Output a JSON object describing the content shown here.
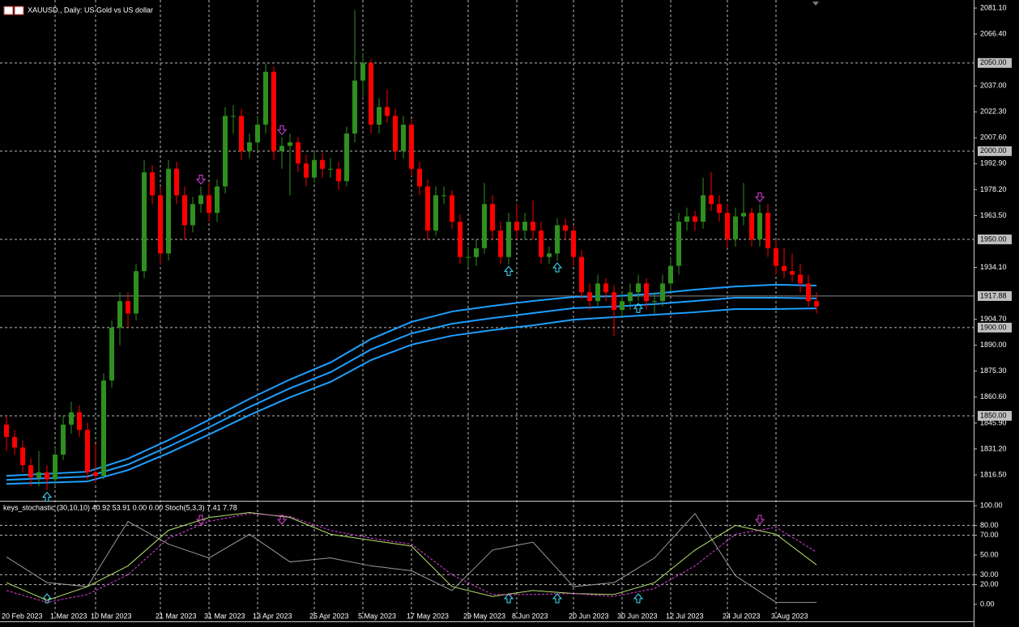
{
  "chart_data": [
    {
      "type": "candlestick",
      "title": "XAUUSD., Daily: US Gold vs US dollar",
      "categories": [
        "20 Feb 2023",
        null,
        null,
        null,
        null,
        null,
        "1 Mar 2023",
        null,
        null,
        null,
        null,
        "10 Mar 2023",
        null,
        null,
        null,
        null,
        null,
        null,
        null,
        "21 Mar 2023",
        null,
        null,
        null,
        null,
        null,
        "31 Mar 2023",
        null,
        null,
        null,
        null,
        null,
        "13 Apr 2023",
        null,
        null,
        null,
        null,
        null,
        null,
        "25 Apr 2023",
        null,
        null,
        null,
        null,
        null,
        "5 May 2023",
        null,
        null,
        null,
        null,
        null,
        "17 May 2023",
        null,
        null,
        null,
        null,
        null,
        null,
        "29 May 2023",
        null,
        null,
        null,
        null,
        null,
        "8 Jun 2023",
        null,
        null,
        null,
        null,
        null,
        null,
        "20 Jun 2023",
        null,
        null,
        null,
        null,
        null,
        "30 Jun 2023",
        null,
        null,
        null,
        null,
        null,
        "12 Jul 2023",
        null,
        null,
        null,
        null,
        null,
        null,
        "24 Jul 2023",
        null,
        null,
        null,
        null,
        null,
        "3 Aug 2023",
        null,
        null,
        null,
        null,
        null
      ],
      "open": [
        1845,
        1838,
        1832,
        1822,
        1815,
        1818,
        1814,
        1828,
        1845,
        1852,
        1842,
        1818,
        1816,
        1870,
        1900,
        1915,
        1908,
        1932,
        1988,
        1975,
        1942,
        1990,
        1975,
        1958,
        1970,
        1975,
        1965,
        1980,
        2020,
        2020,
        2000,
        2005,
        2015,
        2045,
        2000,
        2003,
        2005,
        1993,
        1985,
        1995,
        1990,
        1990,
        1983,
        2010,
        2040,
        2050,
        2015,
        2025,
        2020,
        2000,
        2015,
        1990,
        1980,
        1955,
        1975,
        1975,
        1960,
        1940,
        1940,
        1945,
        1970,
        1955,
        1940,
        1960,
        1955,
        1960,
        1955,
        1940,
        1942,
        1958,
        1955,
        1940,
        1920,
        1915,
        1925,
        1920,
        1910,
        1915,
        1920,
        1925,
        1915,
        1915,
        1925,
        1935,
        1960,
        1963,
        1960,
        1975,
        1970,
        1965,
        1950,
        1963,
        1965,
        1950,
        1965,
        1945,
        1935,
        1932,
        1930,
        1925,
        1915
      ],
      "high": [
        1850,
        1842,
        1836,
        1826,
        1830,
        1822,
        1832,
        1850,
        1858,
        1856,
        1846,
        1834,
        1874,
        1904,
        1920,
        1920,
        1936,
        1995,
        1992,
        1980,
        1995,
        1994,
        1980,
        1974,
        1980,
        1982,
        1984,
        2025,
        2026,
        2024,
        2010,
        2020,
        2050,
        2048,
        2008,
        2010,
        2008,
        1998,
        2000,
        1999,
        1996,
        1994,
        2014,
        2080,
        2055,
        2052,
        2030,
        2035,
        2024,
        2020,
        2018,
        1994,
        1984,
        1980,
        1980,
        1978,
        1964,
        1946,
        1950,
        1982,
        1975,
        1960,
        1965,
        1970,
        1965,
        1972,
        1960,
        1946,
        1962,
        1962,
        1958,
        1944,
        1925,
        1930,
        1928,
        1924,
        1920,
        1925,
        1930,
        1928,
        1920,
        1930,
        1940,
        1965,
        1968,
        1966,
        1985,
        1988,
        1975,
        1970,
        1968,
        1982,
        1968,
        1970,
        1970,
        1950,
        1945,
        1942,
        1936,
        1930,
        1920
      ],
      "low": [
        1830,
        1828,
        1818,
        1810,
        1810,
        1808,
        1810,
        1825,
        1840,
        1838,
        1814,
        1812,
        1814,
        1866,
        1890,
        1900,
        1904,
        1928,
        1970,
        1936,
        1938,
        1970,
        1950,
        1954,
        1965,
        1960,
        1960,
        1976,
        2010,
        1995,
        1996,
        2000,
        2010,
        1995,
        1990,
        1975,
        1988,
        1980,
        1982,
        1985,
        1985,
        1978,
        1980,
        2005,
        2030,
        2010,
        2010,
        2016,
        1995,
        1996,
        1986,
        1975,
        1950,
        1952,
        1970,
        1956,
        1936,
        1934,
        1935,
        1942,
        1950,
        1936,
        1936,
        1950,
        1950,
        1950,
        1936,
        1936,
        1938,
        1950,
        1935,
        1916,
        1910,
        1912,
        1915,
        1895,
        1906,
        1910,
        1915,
        1910,
        1908,
        1912,
        1920,
        1930,
        1955,
        1955,
        1956,
        1966,
        1960,
        1945,
        1946,
        1958,
        1946,
        1946,
        1940,
        1930,
        1928,
        1926,
        1920,
        1912,
        1908
      ],
      "close": [
        1838,
        1832,
        1822,
        1815,
        1818,
        1814,
        1828,
        1845,
        1852,
        1842,
        1818,
        1816,
        1870,
        1900,
        1915,
        1908,
        1932,
        1988,
        1975,
        1942,
        1990,
        1975,
        1958,
        1970,
        1975,
        1965,
        1980,
        2020,
        2020,
        2000,
        2005,
        2015,
        2045,
        2000,
        2003,
        2005,
        1993,
        1985,
        1995,
        1990,
        1990,
        1983,
        2010,
        2040,
        2050,
        2015,
        2025,
        2020,
        2000,
        2015,
        1990,
        1980,
        1955,
        1975,
        1975,
        1960,
        1940,
        1940,
        1945,
        1970,
        1955,
        1940,
        1960,
        1955,
        1960,
        1955,
        1940,
        1942,
        1958,
        1955,
        1940,
        1920,
        1915,
        1925,
        1920,
        1910,
        1915,
        1920,
        1925,
        1915,
        1915,
        1925,
        1935,
        1960,
        1963,
        1960,
        1975,
        1970,
        1965,
        1950,
        1963,
        1965,
        1950,
        1965,
        1945,
        1935,
        1932,
        1930,
        1925,
        1915,
        1912
      ],
      "up_color": "#2f8f1f",
      "down_color": "#ff0000",
      "ylim": [
        1802.28,
        2083.85
      ],
      "yticks": [
        {
          "value": 2081.1,
          "label": "2081.10"
        },
        {
          "value": 2066.4,
          "label": "2066.40"
        },
        {
          "value": 2037,
          "label": "2037.00"
        },
        {
          "value": 2022.3,
          "label": "2022.30"
        },
        {
          "value": 2007.6,
          "label": "2007.60"
        },
        {
          "value": 1992.9,
          "label": "1992.90"
        },
        {
          "value": 1978.2,
          "label": "1978.20"
        },
        {
          "value": 1963.5,
          "label": "1963.50"
        },
        {
          "value": 1934.1,
          "label": "1934.10"
        },
        {
          "value": 1904.7,
          "label": "1904.70"
        },
        {
          "value": 1890,
          "label": "1890.00"
        },
        {
          "value": 1875.3,
          "label": "1875.30"
        },
        {
          "value": 1860.6,
          "label": "1860.60"
        },
        {
          "value": 1845.9,
          "label": "1845.90"
        },
        {
          "value": 1831.2,
          "label": "1831.20"
        },
        {
          "value": 1816.5,
          "label": "1816.50"
        }
      ],
      "levels": [
        {
          "value": 2050,
          "label": "2050.00"
        },
        {
          "value": 2000,
          "label": "2000.00"
        },
        {
          "value": 1950,
          "label": "1950.00"
        },
        {
          "value": 1900,
          "label": "1900.00"
        },
        {
          "value": 1850,
          "label": "1850.00"
        }
      ],
      "last_price": {
        "value": 1917.88,
        "label": "1917.88"
      },
      "buy_signals": [
        5,
        62,
        68,
        78
      ],
      "sell_signals": [
        24,
        34,
        93
      ],
      "overlays": {
        "x": [
          0,
          10,
          15,
          20,
          25,
          30,
          35,
          40,
          45,
          50,
          55,
          60,
          65,
          70,
          75,
          80,
          85,
          90,
          95,
          100
        ],
        "series": [
          {
            "color": "#1e9fff",
            "values": [
              1816.0,
              1818.3,
              1825.7,
              1836.2,
              1847.7,
              1859.6,
              1870.6,
              1880.2,
              1893.5,
              1903.2,
              1909.1,
              1912.3,
              1915.1,
              1917.4,
              1917.8,
              1919.2,
              1921.5,
              1923.3,
              1924.3,
              1923.8
            ]
          },
          {
            "color": "#1e9fff",
            "values": [
              1813.7,
              1815.6,
              1822.4,
              1832.5,
              1843.5,
              1855.0,
              1865.6,
              1874.7,
              1887.6,
              1896.7,
              1902.2,
              1905.4,
              1908.2,
              1911.0,
              1911.9,
              1913.3,
              1915.1,
              1916.9,
              1916.9,
              1916.5
            ]
          },
          {
            "color": "#1e9fff",
            "values": [
              1811.4,
              1812.8,
              1819.2,
              1828.9,
              1839.4,
              1850.4,
              1860.5,
              1869.2,
              1881.6,
              1890.3,
              1895.4,
              1898.6,
              1901.3,
              1904.5,
              1905.9,
              1907.3,
              1908.7,
              1910.5,
              1910.5,
              1910.9
            ]
          }
        ]
      }
    },
    {
      "type": "line",
      "title": "keys_stochastic (30,10,10) 40.92 53.91 0.00 0.00 Stoch(5,3,3) 7.41 7.78",
      "x": [
        0,
        5,
        10,
        15,
        20,
        25,
        30,
        35,
        40,
        45,
        50,
        55,
        60,
        65,
        70,
        75,
        80,
        85,
        90,
        95,
        100
      ],
      "series": [
        {
          "color": "#9a9a9a",
          "dash": false,
          "values": [
            48,
            22,
            18,
            84,
            61,
            47,
            71,
            43,
            47,
            39,
            34,
            14,
            55,
            63,
            18,
            22,
            47,
            92,
            29,
            2,
            2
          ]
        },
        {
          "color": "#b4e26a",
          "dash": false,
          "values": [
            22,
            4,
            18,
            39,
            75,
            88,
            93,
            88,
            71,
            65,
            59,
            18,
            8,
            14,
            11,
            10,
            22,
            55,
            80,
            71,
            40
          ]
        },
        {
          "color": "#e040e0",
          "dash": true,
          "values": [
            14,
            2,
            10,
            30,
            67,
            84,
            92,
            89,
            75,
            67,
            61,
            30,
            10,
            10,
            11,
            8,
            16,
            39,
            71,
            78,
            53
          ]
        }
      ],
      "ylim": [
        -17.2,
        104.1
      ],
      "yticks": [
        {
          "value": 100,
          "label": "100.00"
        },
        {
          "value": 80,
          "label": "80.00"
        },
        {
          "value": 70,
          "label": "70.00"
        },
        {
          "value": 50,
          "label": "50.00"
        },
        {
          "value": 30,
          "label": "30.00"
        },
        {
          "value": 20,
          "label": "20.00"
        },
        {
          "value": 0,
          "label": "0.00"
        }
      ],
      "levels": [
        80,
        70,
        30,
        20
      ]
    }
  ]
}
